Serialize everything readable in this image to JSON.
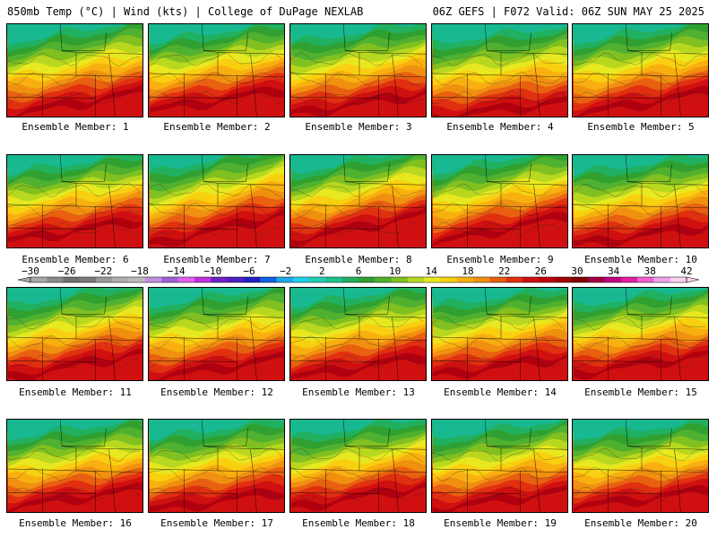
{
  "header": {
    "left": "850mb Temp (°C) | Wind (kts) | College of DuPage NEXLAB",
    "right": "06Z GEFS | F072 Valid: 06Z SUN MAY 25 2025"
  },
  "members": [
    {
      "label": "Ensemble Member: 1",
      "warm": 0.72,
      "cold": 0.6
    },
    {
      "label": "Ensemble Member: 2",
      "warm": 0.62,
      "cold": 0.55
    },
    {
      "label": "Ensemble Member: 3",
      "warm": 0.7,
      "cold": 0.55
    },
    {
      "label": "Ensemble Member: 4",
      "warm": 0.8,
      "cold": 0.45
    },
    {
      "label": "Ensemble Member: 5",
      "warm": 0.72,
      "cold": 0.6
    },
    {
      "label": "Ensemble Member: 6",
      "warm": 0.6,
      "cold": 0.55
    },
    {
      "label": "Ensemble Member: 7",
      "warm": 0.7,
      "cold": 0.8
    },
    {
      "label": "Ensemble Member: 8",
      "warm": 0.6,
      "cold": 0.7
    },
    {
      "label": "Ensemble Member: 9",
      "warm": 0.65,
      "cold": 0.7
    },
    {
      "label": "Ensemble Member: 10",
      "warm": 0.7,
      "cold": 0.5
    },
    {
      "label": "Ensemble Member: 11",
      "warm": 0.7,
      "cold": 0.65
    },
    {
      "label": "Ensemble Member: 12",
      "warm": 0.72,
      "cold": 0.55
    },
    {
      "label": "Ensemble Member: 13",
      "warm": 0.7,
      "cold": 0.55
    },
    {
      "label": "Ensemble Member: 14",
      "warm": 0.65,
      "cold": 0.5
    },
    {
      "label": "Ensemble Member: 15",
      "warm": 0.6,
      "cold": 0.5
    },
    {
      "label": "Ensemble Member: 16",
      "warm": 0.65,
      "cold": 0.5
    },
    {
      "label": "Ensemble Member: 17",
      "warm": 0.72,
      "cold": 0.5
    },
    {
      "label": "Ensemble Member: 18",
      "warm": 0.65,
      "cold": 0.55
    },
    {
      "label": "Ensemble Member: 19",
      "warm": 0.7,
      "cold": 0.5
    },
    {
      "label": "Ensemble Member: 20",
      "warm": 0.65,
      "cold": 0.45
    }
  ],
  "colorbar": {
    "ticks": [
      -30,
      -26,
      -22,
      -18,
      -14,
      -10,
      -6,
      -2,
      2,
      6,
      10,
      14,
      18,
      22,
      26,
      30,
      34,
      38,
      42
    ],
    "colors": [
      "#a8a8a8",
      "#8c8c8c",
      "#707070",
      "#7a7a7a",
      "#9a9a9a",
      "#b0b0b0",
      "#bbbbbb",
      "#c090e0",
      "#a060d8",
      "#e060f0",
      "#c030e0",
      "#7020c8",
      "#5020c0",
      "#2020c8",
      "#1060e0",
      "#20a8e8",
      "#20d0e8",
      "#20d0b0",
      "#20c090",
      "#20b060",
      "#30a030",
      "#50b030",
      "#80c020",
      "#b8d820",
      "#e8e820",
      "#f8d010",
      "#f8b010",
      "#f09010",
      "#e86010",
      "#e03010",
      "#d01010",
      "#c00010",
      "#a00000",
      "#800000",
      "#a00040",
      "#c00080",
      "#e020a0",
      "#f060d0",
      "#f0a0e8",
      "#f8d0f0"
    ]
  }
}
